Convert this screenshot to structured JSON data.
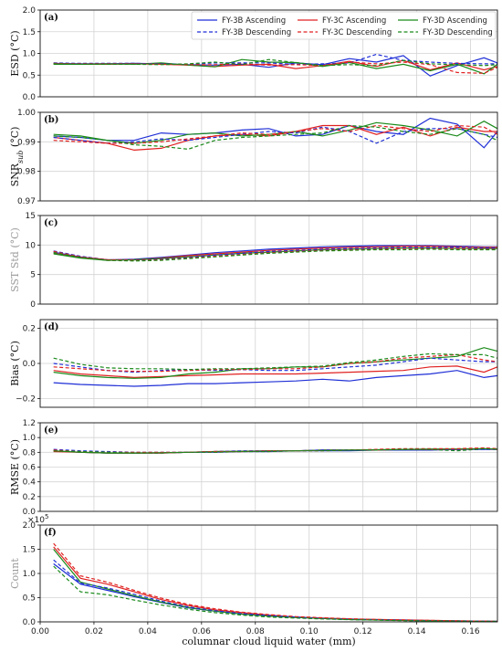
{
  "chart_data": {
    "type": "line",
    "xlabel": "columnar cloud liquid water (mm)",
    "xlim": [
      0.0,
      0.17
    ],
    "x_ticks": [
      "0.00",
      "0.02",
      "0.04",
      "0.06",
      "0.08",
      "0.10",
      "0.12",
      "0.14",
      "0.16"
    ],
    "legend": {
      "placement": "top-right",
      "entries": [
        "FY-3B Ascending",
        "FY-3C Ascending",
        "FY-3D Ascending",
        "FY-3B Descending",
        "FY-3C Descending",
        "FY-3D Descending"
      ]
    },
    "series_styles": [
      {
        "name": "FY-3B Ascending",
        "color": "#1f2fd6",
        "dash": "solid"
      },
      {
        "name": "FY-3C Ascending",
        "color": "#e02020",
        "dash": "solid"
      },
      {
        "name": "FY-3D Ascending",
        "color": "#1a8a1a",
        "dash": "solid"
      },
      {
        "name": "FY-3B Descending",
        "color": "#1f2fd6",
        "dash": "dashed"
      },
      {
        "name": "FY-3C Descending",
        "color": "#e02020",
        "dash": "dashed"
      },
      {
        "name": "FY-3D Descending",
        "color": "#1a8a1a",
        "dash": "dashed"
      }
    ],
    "x": [
      0.005,
      0.015,
      0.025,
      0.035,
      0.045,
      0.055,
      0.065,
      0.075,
      0.085,
      0.095,
      0.105,
      0.115,
      0.125,
      0.135,
      0.145,
      0.155,
      0.165,
      0.17
    ],
    "grid": true,
    "panels": [
      {
        "panel_label": "(a)",
        "ylabel_main": "ESD (",
        "ylabel_sub": "",
        "ylabel_unit": "°C",
        "ylabel_end": ")",
        "ylim": [
          0.0,
          2.0
        ],
        "y_ticks": [
          "0.0",
          "0.5",
          "1.0",
          "1.5",
          "2.0"
        ],
        "show_legend": true,
        "series": [
          {
            "values": [
              0.77,
              0.76,
              0.76,
              0.77,
              0.76,
              0.74,
              0.73,
              0.75,
              0.68,
              0.78,
              0.74,
              0.88,
              0.8,
              0.95,
              0.48,
              0.72,
              0.9,
              0.78
            ]
          },
          {
            "values": [
              0.76,
              0.75,
              0.75,
              0.76,
              0.75,
              0.73,
              0.7,
              0.73,
              0.75,
              0.65,
              0.72,
              0.82,
              0.7,
              0.84,
              0.62,
              0.78,
              0.62,
              0.7
            ]
          },
          {
            "values": [
              0.75,
              0.75,
              0.76,
              0.75,
              0.78,
              0.73,
              0.69,
              0.86,
              0.8,
              0.79,
              0.7,
              0.79,
              0.65,
              0.75,
              0.6,
              0.75,
              0.53,
              0.75
            ]
          },
          {
            "values": [
              0.78,
              0.77,
              0.77,
              0.77,
              0.76,
              0.75,
              0.78,
              0.78,
              0.78,
              0.75,
              0.76,
              0.78,
              0.98,
              0.84,
              0.8,
              0.77,
              0.76,
              0.76
            ]
          },
          {
            "values": [
              0.77,
              0.76,
              0.76,
              0.76,
              0.75,
              0.74,
              0.74,
              0.76,
              0.73,
              0.74,
              0.72,
              0.8,
              0.76,
              0.8,
              0.74,
              0.56,
              0.54,
              0.68
            ]
          },
          {
            "values": [
              0.76,
              0.75,
              0.75,
              0.75,
              0.74,
              0.76,
              0.8,
              0.74,
              0.86,
              0.79,
              0.72,
              0.74,
              0.72,
              0.84,
              0.76,
              0.74,
              0.72,
              0.74
            ]
          }
        ]
      },
      {
        "panel_label": "(b)",
        "ylabel_main": "SNR",
        "ylabel_sub": "sub",
        "ylabel_unit": "°C",
        "ylabel_end": ")",
        "ylim": [
          0.97,
          1.0
        ],
        "y_ticks": [
          "0.97",
          "0.98",
          "0.99",
          "1.00"
        ],
        "show_legend": false,
        "series": [
          {
            "values": [
              0.992,
              0.9915,
              0.9905,
              0.9905,
              0.993,
              0.9925,
              0.993,
              0.994,
              0.9945,
              0.992,
              0.9925,
              0.9955,
              0.9935,
              0.9925,
              0.998,
              0.996,
              0.988,
              0.9935
            ]
          },
          {
            "values": [
              0.9915,
              0.9905,
              0.9895,
              0.9872,
              0.9878,
              0.9905,
              0.992,
              0.9925,
              0.992,
              0.9935,
              0.9955,
              0.9955,
              0.9925,
              0.995,
              0.992,
              0.995,
              0.9935,
              0.9935
            ]
          },
          {
            "values": [
              0.9925,
              0.992,
              0.9905,
              0.9895,
              0.9905,
              0.9925,
              0.993,
              0.992,
              0.9925,
              0.9935,
              0.992,
              0.994,
              0.9965,
              0.9955,
              0.994,
              0.992,
              0.997,
              0.9945
            ]
          },
          {
            "values": [
              0.9915,
              0.9905,
              0.9895,
              0.99,
              0.991,
              0.9905,
              0.9915,
              0.9925,
              0.9935,
              0.993,
              0.995,
              0.9935,
              0.9895,
              0.9935,
              0.9945,
              0.9945,
              0.9925,
              0.9915
            ]
          },
          {
            "values": [
              0.9905,
              0.99,
              0.9895,
              0.9895,
              0.99,
              0.991,
              0.992,
              0.993,
              0.9925,
              0.9935,
              0.9945,
              0.9935,
              0.9955,
              0.9945,
              0.9935,
              0.9955,
              0.995,
              0.9925
            ]
          },
          {
            "values": [
              0.992,
              0.9915,
              0.9905,
              0.989,
              0.9885,
              0.9875,
              0.9905,
              0.9915,
              0.992,
              0.9925,
              0.993,
              0.9955,
              0.995,
              0.9935,
              0.9925,
              0.9945,
              0.9925,
              0.9905
            ]
          }
        ]
      },
      {
        "panel_label": "(c)",
        "ylabel_main": "SST Std (",
        "ylabel_sub": "",
        "ylabel_unit": "°C",
        "ylabel_end": ")",
        "ylabel_gray": true,
        "ylim": [
          0,
          15
        ],
        "y_ticks": [
          "0",
          "5",
          "10",
          "15"
        ],
        "show_legend": false,
        "series": [
          {
            "values": [
              8.8,
              8.0,
              7.5,
              7.6,
              7.9,
              8.3,
              8.7,
              9.0,
              9.3,
              9.5,
              9.7,
              9.8,
              9.9,
              9.9,
              9.9,
              9.8,
              9.7,
              9.7
            ]
          },
          {
            "values": [
              8.6,
              7.9,
              7.5,
              7.5,
              7.8,
              8.2,
              8.5,
              8.8,
              9.1,
              9.3,
              9.5,
              9.6,
              9.7,
              9.8,
              9.8,
              9.7,
              9.6,
              9.6
            ]
          },
          {
            "values": [
              8.5,
              7.8,
              7.4,
              7.5,
              7.7,
              8.0,
              8.3,
              8.6,
              8.8,
              9.0,
              9.2,
              9.3,
              9.4,
              9.5,
              9.5,
              9.4,
              9.4,
              9.4
            ]
          },
          {
            "values": [
              9.0,
              8.1,
              7.5,
              7.4,
              7.6,
              7.9,
              8.3,
              8.6,
              8.9,
              9.1,
              9.3,
              9.4,
              9.5,
              9.6,
              9.6,
              9.6,
              9.5,
              9.5
            ]
          },
          {
            "values": [
              8.9,
              8.0,
              7.5,
              7.4,
              7.5,
              7.8,
              8.1,
              8.4,
              8.7,
              8.9,
              9.1,
              9.2,
              9.3,
              9.4,
              9.4,
              9.4,
              9.3,
              9.3
            ]
          },
          {
            "values": [
              8.7,
              7.9,
              7.4,
              7.3,
              7.4,
              7.7,
              8.0,
              8.3,
              8.6,
              8.8,
              9.0,
              9.1,
              9.2,
              9.2,
              9.3,
              9.2,
              9.2,
              9.2
            ]
          }
        ]
      },
      {
        "panel_label": "(d)",
        "ylabel_main": "Bias (",
        "ylabel_sub": "",
        "ylabel_unit": "°C",
        "ylabel_end": ")",
        "ylim": [
          -0.25,
          0.25
        ],
        "y_ticks": [
          "−0.2",
          "0.0",
          "0.2"
        ],
        "y_tick_values": [
          -0.2,
          0.0,
          0.2
        ],
        "show_legend": false,
        "series": [
          {
            "values": [
              -0.11,
              -0.12,
              -0.125,
              -0.13,
              -0.125,
              -0.115,
              -0.115,
              -0.11,
              -0.105,
              -0.1,
              -0.09,
              -0.1,
              -0.08,
              -0.07,
              -0.06,
              -0.04,
              -0.08,
              -0.07
            ]
          },
          {
            "values": [
              -0.04,
              -0.06,
              -0.07,
              -0.08,
              -0.075,
              -0.07,
              -0.065,
              -0.06,
              -0.06,
              -0.06,
              -0.055,
              -0.05,
              -0.045,
              -0.04,
              -0.02,
              -0.015,
              -0.05,
              -0.02
            ]
          },
          {
            "values": [
              -0.05,
              -0.07,
              -0.08,
              -0.085,
              -0.08,
              -0.06,
              -0.05,
              -0.03,
              -0.03,
              -0.02,
              -0.02,
              0.0,
              0.01,
              0.02,
              0.03,
              0.04,
              0.09,
              0.07
            ]
          },
          {
            "values": [
              0.0,
              -0.02,
              -0.04,
              -0.05,
              -0.04,
              -0.035,
              -0.04,
              -0.035,
              -0.04,
              -0.04,
              -0.03,
              -0.02,
              -0.01,
              0.01,
              0.03,
              0.02,
              0.01,
              0.01
            ]
          },
          {
            "values": [
              -0.02,
              -0.03,
              -0.04,
              -0.045,
              -0.045,
              -0.04,
              -0.035,
              -0.035,
              -0.03,
              -0.03,
              -0.02,
              0.0,
              0.01,
              0.03,
              0.04,
              0.05,
              0.02,
              0.01
            ]
          },
          {
            "values": [
              0.03,
              -0.005,
              -0.025,
              -0.03,
              -0.03,
              -0.035,
              -0.03,
              -0.03,
              -0.025,
              -0.02,
              -0.015,
              0.005,
              0.02,
              0.04,
              0.055,
              0.05,
              0.05,
              0.03
            ]
          }
        ]
      },
      {
        "panel_label": "(e)",
        "ylabel_main": "RMSE (",
        "ylabel_sub": "",
        "ylabel_unit": "°C",
        "ylabel_end": ")",
        "ylim": [
          0.0,
          1.2
        ],
        "y_ticks": [
          "0.0",
          "0.2",
          "0.4",
          "0.6",
          "0.8",
          "1.0",
          "1.2"
        ],
        "show_legend": false,
        "series": [
          {
            "values": [
              0.82,
              0.8,
              0.79,
              0.79,
              0.79,
              0.8,
              0.8,
              0.81,
              0.81,
              0.82,
              0.82,
              0.82,
              0.83,
              0.83,
              0.83,
              0.84,
              0.84,
              0.84
            ]
          },
          {
            "values": [
              0.81,
              0.8,
              0.79,
              0.79,
              0.79,
              0.8,
              0.81,
              0.81,
              0.82,
              0.82,
              0.83,
              0.83,
              0.83,
              0.84,
              0.84,
              0.84,
              0.85,
              0.84
            ]
          },
          {
            "values": [
              0.82,
              0.8,
              0.79,
              0.79,
              0.795,
              0.8,
              0.81,
              0.815,
              0.82,
              0.82,
              0.83,
              0.83,
              0.835,
              0.84,
              0.845,
              0.845,
              0.85,
              0.845
            ]
          },
          {
            "values": [
              0.84,
              0.82,
              0.81,
              0.8,
              0.8,
              0.8,
              0.81,
              0.82,
              0.82,
              0.82,
              0.83,
              0.83,
              0.83,
              0.84,
              0.84,
              0.83,
              0.84,
              0.84
            ]
          },
          {
            "values": [
              0.83,
              0.81,
              0.8,
              0.8,
              0.8,
              0.8,
              0.81,
              0.81,
              0.82,
              0.82,
              0.82,
              0.83,
              0.84,
              0.85,
              0.85,
              0.85,
              0.86,
              0.85
            ]
          },
          {
            "values": [
              0.82,
              0.81,
              0.8,
              0.79,
              0.79,
              0.8,
              0.8,
              0.81,
              0.81,
              0.82,
              0.82,
              0.83,
              0.83,
              0.84,
              0.84,
              0.82,
              0.85,
              0.84
            ]
          }
        ]
      },
      {
        "panel_label": "(f)",
        "ylabel_main": "Count",
        "ylabel_sub": "",
        "ylabel_unit": "",
        "ylabel_end": "",
        "ylabel_gray": true,
        "ylim": [
          0.0,
          2.0
        ],
        "y_ticks": [
          "0.0",
          "0.5",
          "1.0",
          "1.5",
          "2.0"
        ],
        "y_multiplier": "×10",
        "y_multiplier_exp": "5",
        "show_legend": false,
        "series": [
          {
            "values": [
              1.2,
              0.78,
              0.65,
              0.52,
              0.4,
              0.29,
              0.22,
              0.16,
              0.12,
              0.09,
              0.07,
              0.05,
              0.04,
              0.03,
              0.02,
              0.015,
              0.01,
              0.01
            ]
          },
          {
            "values": [
              1.55,
              0.9,
              0.78,
              0.62,
              0.46,
              0.34,
              0.25,
              0.19,
              0.14,
              0.1,
              0.08,
              0.06,
              0.05,
              0.04,
              0.03,
              0.02,
              0.015,
              0.01
            ]
          },
          {
            "values": [
              1.5,
              0.82,
              0.68,
              0.54,
              0.41,
              0.3,
              0.22,
              0.16,
              0.12,
              0.09,
              0.07,
              0.05,
              0.04,
              0.03,
              0.02,
              0.015,
              0.01,
              0.01
            ]
          },
          {
            "values": [
              1.28,
              0.8,
              0.7,
              0.57,
              0.43,
              0.31,
              0.23,
              0.17,
              0.13,
              0.1,
              0.07,
              0.055,
              0.045,
              0.035,
              0.025,
              0.02,
              0.015,
              0.01
            ]
          },
          {
            "values": [
              1.62,
              0.95,
              0.82,
              0.65,
              0.49,
              0.36,
              0.27,
              0.2,
              0.15,
              0.11,
              0.085,
              0.065,
              0.05,
              0.04,
              0.03,
              0.02,
              0.015,
              0.01
            ]
          },
          {
            "values": [
              1.15,
              0.62,
              0.56,
              0.45,
              0.35,
              0.26,
              0.19,
              0.14,
              0.1,
              0.08,
              0.06,
              0.045,
              0.035,
              0.025,
              0.02,
              0.015,
              0.01,
              0.01
            ]
          }
        ]
      }
    ]
  }
}
